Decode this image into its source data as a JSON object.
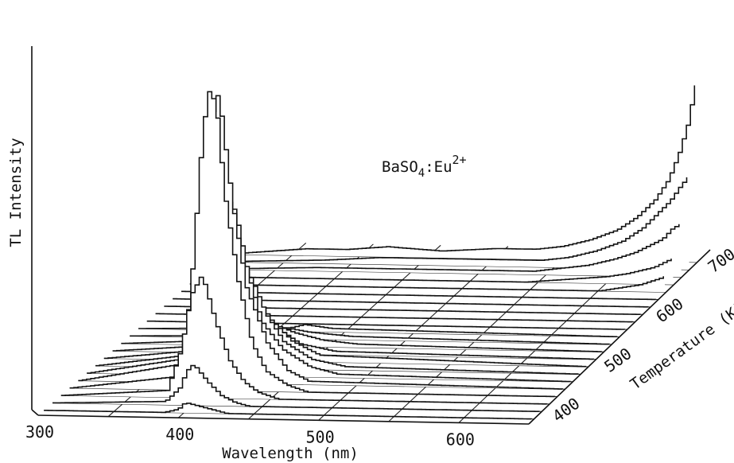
{
  "chart_data": {
    "type": "3d-waterfall-line",
    "title": "",
    "sample_label": "BaSO",
    "sample_sub": "4",
    "sample_suffix": ":Eu",
    "sample_sup": "2+",
    "x_axis": {
      "label": "Wavelength (nm)",
      "ticks": [
        "300",
        "400",
        "500",
        "600"
      ],
      "tick_values": [
        300,
        400,
        500,
        600
      ],
      "range": [
        300,
        650
      ]
    },
    "z_axis": {
      "label": "Temperature (K)",
      "ticks": [
        "400",
        "500",
        "600",
        "700"
      ],
      "tick_values": [
        400,
        500,
        600,
        700
      ],
      "range": [
        375,
        725
      ]
    },
    "y_axis": {
      "label": "TL Intensity",
      "range": [
        0,
        100
      ]
    },
    "grid": true,
    "series": [
      {
        "temperature": 385,
        "points": [
          [
            300,
            0
          ],
          [
            385,
            0
          ],
          [
            395,
            1
          ],
          [
            400,
            3
          ],
          [
            410,
            2
          ],
          [
            420,
            1
          ],
          [
            430,
            0
          ],
          [
            650,
            0
          ]
        ]
      },
      {
        "temperature": 400,
        "points": [
          [
            300,
            0
          ],
          [
            380,
            1
          ],
          [
            390,
            5
          ],
          [
            395,
            10
          ],
          [
            400,
            12
          ],
          [
            410,
            7
          ],
          [
            420,
            3
          ],
          [
            430,
            1
          ],
          [
            440,
            0
          ],
          [
            650,
            0
          ]
        ]
      },
      {
        "temperature": 415,
        "points": [
          [
            300,
            0
          ],
          [
            375,
            2
          ],
          [
            385,
            14
          ],
          [
            392,
            30
          ],
          [
            400,
            36
          ],
          [
            410,
            22
          ],
          [
            420,
            11
          ],
          [
            430,
            5
          ],
          [
            440,
            2
          ],
          [
            455,
            0
          ],
          [
            650,
            0
          ]
        ]
      },
      {
        "temperature": 430,
        "points": [
          [
            300,
            0
          ],
          [
            378,
            4
          ],
          [
            386,
            30
          ],
          [
            393,
            68
          ],
          [
            398,
            88
          ],
          [
            404,
            84
          ],
          [
            410,
            58
          ],
          [
            420,
            32
          ],
          [
            430,
            14
          ],
          [
            440,
            6
          ],
          [
            455,
            2
          ],
          [
            470,
            0
          ],
          [
            650,
            0
          ]
        ]
      },
      {
        "temperature": 445,
        "points": [
          [
            300,
            0
          ],
          [
            382,
            6
          ],
          [
            390,
            40
          ],
          [
            395,
            76
          ],
          [
            398,
            86
          ],
          [
            402,
            78
          ],
          [
            410,
            52
          ],
          [
            420,
            28
          ],
          [
            435,
            12
          ],
          [
            450,
            4
          ],
          [
            465,
            1
          ],
          [
            650,
            0
          ]
        ]
      },
      {
        "temperature": 460,
        "points": [
          [
            300,
            0
          ],
          [
            388,
            6
          ],
          [
            395,
            34
          ],
          [
            400,
            52
          ],
          [
            406,
            48
          ],
          [
            415,
            30
          ],
          [
            425,
            16
          ],
          [
            440,
            8
          ],
          [
            460,
            3
          ],
          [
            480,
            1
          ],
          [
            650,
            0
          ]
        ]
      },
      {
        "temperature": 475,
        "points": [
          [
            300,
            0
          ],
          [
            392,
            5
          ],
          [
            400,
            22
          ],
          [
            405,
            30
          ],
          [
            412,
            26
          ],
          [
            422,
            16
          ],
          [
            435,
            8
          ],
          [
            455,
            3
          ],
          [
            480,
            1
          ],
          [
            650,
            0
          ]
        ]
      },
      {
        "temperature": 490,
        "points": [
          [
            300,
            0
          ],
          [
            395,
            4
          ],
          [
            403,
            14
          ],
          [
            410,
            18
          ],
          [
            420,
            12
          ],
          [
            435,
            6
          ],
          [
            455,
            2
          ],
          [
            650,
            0
          ]
        ]
      },
      {
        "temperature": 505,
        "points": [
          [
            300,
            0
          ],
          [
            400,
            3
          ],
          [
            410,
            9
          ],
          [
            420,
            7
          ],
          [
            435,
            3
          ],
          [
            460,
            1
          ],
          [
            650,
            0
          ]
        ]
      },
      {
        "temperature": 520,
        "points": [
          [
            300,
            0
          ],
          [
            400,
            2
          ],
          [
            412,
            6
          ],
          [
            425,
            4
          ],
          [
            445,
            2
          ],
          [
            470,
            1
          ],
          [
            650,
            0
          ]
        ]
      },
      {
        "temperature": 535,
        "points": [
          [
            300,
            0
          ],
          [
            405,
            1
          ],
          [
            415,
            3
          ],
          [
            430,
            2
          ],
          [
            460,
            1
          ],
          [
            650,
            0
          ]
        ]
      },
      {
        "temperature": 550,
        "points": [
          [
            300,
            0
          ],
          [
            410,
            1
          ],
          [
            420,
            2
          ],
          [
            440,
            1
          ],
          [
            650,
            0
          ]
        ]
      },
      {
        "temperature": 565,
        "points": [
          [
            300,
            0
          ],
          [
            650,
            0
          ]
        ]
      },
      {
        "temperature": 580,
        "points": [
          [
            300,
            0
          ],
          [
            650,
            0
          ]
        ]
      },
      {
        "temperature": 595,
        "points": [
          [
            300,
            0
          ],
          [
            650,
            0
          ]
        ]
      },
      {
        "temperature": 610,
        "points": [
          [
            300,
            0
          ],
          [
            650,
            0
          ]
        ]
      },
      {
        "temperature": 625,
        "points": [
          [
            300,
            0
          ],
          [
            650,
            0
          ]
        ]
      },
      {
        "temperature": 640,
        "points": [
          [
            300,
            0
          ],
          [
            600,
            0
          ],
          [
            615,
            1
          ],
          [
            630,
            2
          ],
          [
            645,
            4
          ],
          [
            650,
            5
          ]
        ]
      },
      {
        "temperature": 655,
        "points": [
          [
            300,
            0
          ],
          [
            540,
            0
          ],
          [
            570,
            1
          ],
          [
            600,
            2
          ],
          [
            615,
            3
          ],
          [
            625,
            4
          ],
          [
            635,
            5
          ],
          [
            645,
            7
          ],
          [
            650,
            8
          ]
        ]
      },
      {
        "temperature": 670,
        "points": [
          [
            300,
            0
          ],
          [
            380,
            1
          ],
          [
            420,
            1
          ],
          [
            460,
            1
          ],
          [
            500,
            1
          ],
          [
            540,
            1
          ],
          [
            560,
            2
          ],
          [
            580,
            3
          ],
          [
            600,
            5
          ],
          [
            615,
            7
          ],
          [
            625,
            9
          ],
          [
            635,
            11
          ],
          [
            642,
            14
          ],
          [
            650,
            16
          ]
        ]
      },
      {
        "temperature": 685,
        "points": [
          [
            300,
            0
          ],
          [
            380,
            1
          ],
          [
            420,
            2
          ],
          [
            460,
            2
          ],
          [
            500,
            2
          ],
          [
            540,
            2
          ],
          [
            560,
            3
          ],
          [
            580,
            5
          ],
          [
            600,
            8
          ],
          [
            615,
            12
          ],
          [
            625,
            16
          ],
          [
            635,
            20
          ],
          [
            642,
            24
          ],
          [
            650,
            28
          ]
        ]
      },
      {
        "temperature": 700,
        "points": [
          [
            300,
            0
          ],
          [
            330,
            1
          ],
          [
            360,
            2
          ],
          [
            390,
            2
          ],
          [
            420,
            3
          ],
          [
            460,
            2
          ],
          [
            500,
            3
          ],
          [
            530,
            3
          ],
          [
            550,
            4
          ],
          [
            570,
            6
          ],
          [
            590,
            9
          ],
          [
            605,
            13
          ],
          [
            618,
            18
          ],
          [
            628,
            24
          ],
          [
            636,
            32
          ],
          [
            642,
            40
          ],
          [
            647,
            50
          ],
          [
            650,
            55
          ]
        ]
      }
    ]
  }
}
